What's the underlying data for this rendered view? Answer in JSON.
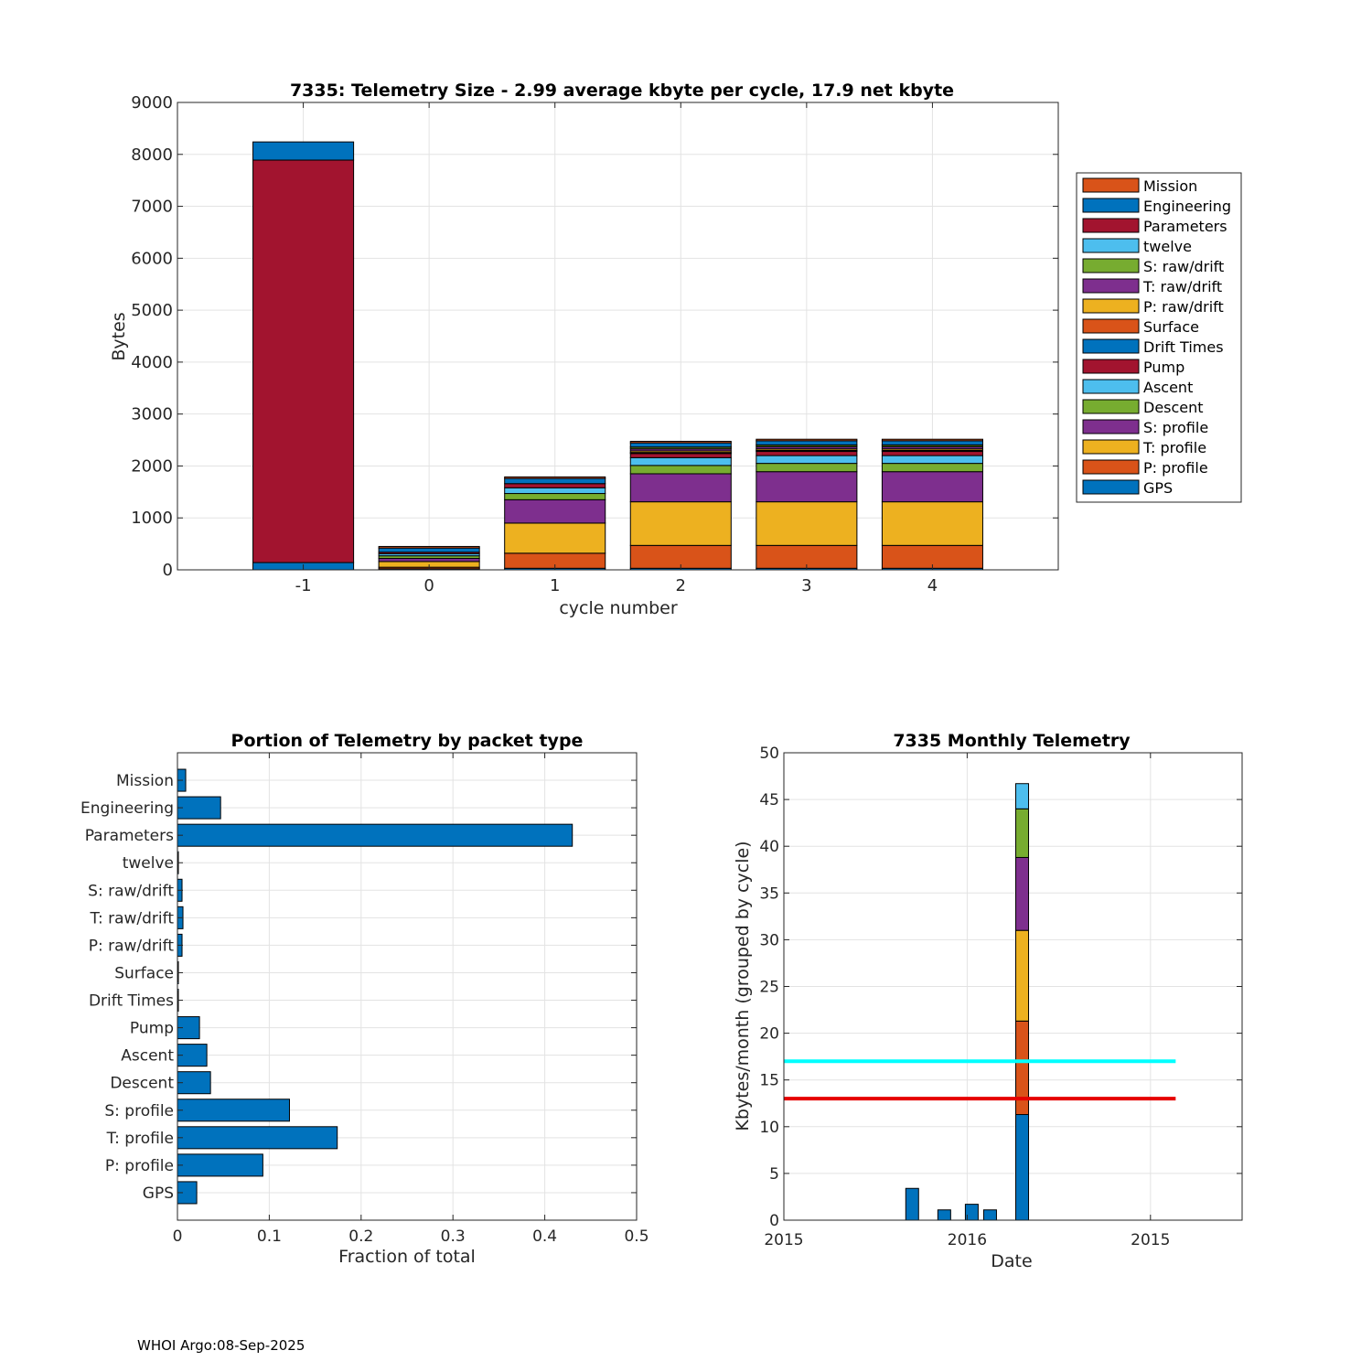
{
  "footer": "WHOI Argo:08-Sep-2025",
  "colors": {
    "Mission": "#D95319",
    "Engineering": "#0072BD",
    "Parameters": "#A2142F",
    "twelve": "#4DBEEE",
    "S: raw/drift": "#77AC30",
    "T: raw/drift": "#7E2F8E",
    "P: raw/drift": "#EDB120",
    "Surface": "#D95319",
    "Drift Times": "#0072BD",
    "Pump": "#A2142F",
    "Ascent": "#4DBEEE",
    "Descent": "#77AC30",
    "S: profile": "#7E2F8E",
    "T: profile": "#EDB120",
    "P: profile": "#D95319",
    "GPS": "#0072BD",
    "bar": "#0072BD",
    "cyan_line": "#00FFFF",
    "red_line": "#E60000"
  },
  "chart_data": [
    {
      "type": "bar",
      "stacked": true,
      "title": "7335: Telemetry Size - 2.99 average kbyte per cycle,   17.9 net kbyte",
      "xlabel": "cycle number",
      "ylabel": "Bytes",
      "ylim": [
        0,
        9000
      ],
      "xlim": [
        -2,
        5
      ],
      "yticks": [
        0,
        1000,
        2000,
        3000,
        4000,
        5000,
        6000,
        7000,
        8000,
        9000
      ],
      "categories": [
        "-1",
        "0",
        "1",
        "2",
        "3",
        "4"
      ],
      "x": [
        -1,
        0,
        1,
        2,
        3,
        4
      ],
      "stack_order": [
        "GPS",
        "P: profile",
        "T: profile",
        "S: profile",
        "Descent",
        "Ascent",
        "Pump",
        "Drift Times",
        "Surface",
        "P: raw/drift",
        "T: raw/drift",
        "S: raw/drift",
        "twelve",
        "Parameters",
        "Engineering",
        "Mission"
      ],
      "legend": [
        "Mission",
        "Engineering",
        "Parameters",
        "twelve",
        "S: raw/drift",
        "T: raw/drift",
        "P: raw/drift",
        "Surface",
        "Drift Times",
        "Pump",
        "Ascent",
        "Descent",
        "S: profile",
        "T: profile",
        "P: profile",
        "GPS"
      ],
      "legend_position": "right",
      "grid": true,
      "series": [
        {
          "name": "GPS",
          "values": [
            140,
            20,
            30,
            30,
            30,
            30
          ]
        },
        {
          "name": "P: profile",
          "values": [
            0,
            30,
            290,
            440,
            440,
            440
          ]
        },
        {
          "name": "T: profile",
          "values": [
            0,
            110,
            580,
            840,
            840,
            840
          ]
        },
        {
          "name": "S: profile",
          "values": [
            0,
            60,
            450,
            540,
            580,
            580
          ]
        },
        {
          "name": "Descent",
          "values": [
            0,
            50,
            120,
            160,
            160,
            160
          ]
        },
        {
          "name": "Ascent",
          "values": [
            0,
            40,
            110,
            150,
            150,
            150
          ]
        },
        {
          "name": "Pump",
          "values": [
            0,
            30,
            80,
            80,
            80,
            80
          ]
        },
        {
          "name": "Drift Times",
          "values": [
            0,
            0,
            0,
            10,
            10,
            10
          ]
        },
        {
          "name": "Surface",
          "values": [
            0,
            0,
            0,
            10,
            10,
            10
          ]
        },
        {
          "name": "P: raw/drift",
          "values": [
            0,
            0,
            0,
            30,
            30,
            30
          ]
        },
        {
          "name": "T: raw/drift",
          "values": [
            0,
            0,
            0,
            40,
            40,
            40
          ]
        },
        {
          "name": "S: raw/drift",
          "values": [
            0,
            0,
            0,
            30,
            30,
            30
          ]
        },
        {
          "name": "twelve",
          "values": [
            0,
            0,
            0,
            5,
            5,
            5
          ]
        },
        {
          "name": "Parameters",
          "values": [
            7750,
            0,
            0,
            0,
            0,
            0
          ]
        },
        {
          "name": "Engineering",
          "values": [
            350,
            80,
            100,
            80,
            80,
            80
          ]
        },
        {
          "name": "Mission",
          "values": [
            0,
            30,
            30,
            30,
            30,
            30
          ]
        }
      ]
    },
    {
      "type": "bar",
      "orientation": "horizontal",
      "title": "Portion of Telemetry by packet type",
      "xlabel": "Fraction of total",
      "xlim": [
        0,
        0.5
      ],
      "xticks": [
        0,
        0.1,
        0.2,
        0.3,
        0.4,
        0.5
      ],
      "xtick_labels": [
        "0",
        "0.1",
        "0.2",
        "0.3",
        "0.4",
        "0.5"
      ],
      "grid": true,
      "categories": [
        "Mission",
        "Engineering",
        "Parameters",
        "twelve",
        "S: raw/drift",
        "T: raw/drift",
        "P: raw/drift",
        "Surface",
        "Drift Times",
        "Pump",
        "Ascent",
        "Descent",
        "S: profile",
        "T: profile",
        "P: profile",
        "GPS"
      ],
      "values": [
        0.009,
        0.047,
        0.43,
        0.001,
        0.005,
        0.006,
        0.005,
        0.001,
        0.001,
        0.024,
        0.032,
        0.036,
        0.122,
        0.174,
        0.093,
        0.021
      ]
    },
    {
      "type": "bar",
      "stacked": true,
      "title": "7335 Monthly Telemetry",
      "xlabel": "Date",
      "ylabel": "Kbytes/month (grouped by cycle)",
      "ylim": [
        0,
        50
      ],
      "yticks": [
        0,
        5,
        10,
        15,
        20,
        25,
        30,
        35,
        40,
        45,
        50
      ],
      "xlim": [
        0,
        10
      ],
      "xticks": [
        0,
        4,
        8
      ],
      "xtick_labels": [
        "2015",
        "2016",
        "2015"
      ],
      "grid": true,
      "simple_bars": [
        {
          "x": 2.8,
          "value": 3.4
        },
        {
          "x": 3.5,
          "value": 1.1
        },
        {
          "x": 4.1,
          "value": 1.7
        },
        {
          "x": 4.5,
          "value": 1.1
        }
      ],
      "stacked_bar": {
        "x": 5.2,
        "segments": [
          {
            "name": "GPS",
            "value": 11.3
          },
          {
            "name": "P: profile",
            "value": 10.0
          },
          {
            "name": "T: profile",
            "value": 9.7
          },
          {
            "name": "S: profile",
            "value": 7.8
          },
          {
            "name": "Descent",
            "value": 5.2
          },
          {
            "name": "Ascent",
            "value": 2.7
          }
        ]
      },
      "hlines": [
        {
          "name": "cyan",
          "y": 17,
          "x_from": 0,
          "x_to": 8.55,
          "color": "#00FFFF"
        },
        {
          "name": "red",
          "y": 13,
          "x_from": 0,
          "x_to": 8.55,
          "color": "#E60000"
        }
      ]
    }
  ]
}
